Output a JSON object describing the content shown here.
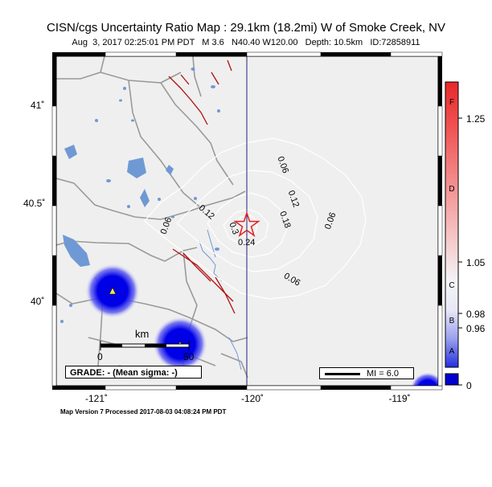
{
  "header": {
    "title": "CISN/cgs Uncertainty Ratio Map : 29.1km (18.2mi) W of Smoke Creek, NV",
    "subtitle": "Aug  3, 2017 02:25:01 PM PDT   M 3.6   N40.40 W120.00   Depth: 10.5km   ID:72858911"
  },
  "axes": {
    "y_labels": [
      "41˚",
      "40.5˚",
      "40˚"
    ],
    "x_labels": [
      "-121˚",
      "-120˚",
      "-119˚"
    ]
  },
  "contours": {
    "labels": [
      "0.06",
      "0.12",
      "0.18",
      "0.06",
      "0.06",
      "0.12",
      "0.3",
      "0.24",
      "0.06",
      "0.06"
    ]
  },
  "scale_bar": {
    "unit": "km",
    "left": "0",
    "right": "50"
  },
  "grade": {
    "text": "GRADE: - (Mean sigma: -)"
  },
  "mi_legend": {
    "text": "MI = 6.0"
  },
  "colorbar": {
    "ticks": [
      "1.25",
      "1.05",
      "0.98",
      "0.96",
      "0"
    ],
    "letters": [
      "F",
      "D",
      "C",
      "B",
      "A"
    ],
    "colors": {
      "top": "#e8282a",
      "mid": "#f4f4f8",
      "bottom": "#2430e0",
      "base": "#0000d0"
    }
  },
  "footer": {
    "text": "Map Version 7 Processed 2017-08-03 04:08:24 PM PDT"
  },
  "colors": {
    "background": "#efefef",
    "water": "#6f99d4",
    "roads": "#9a9a9a",
    "faults": "#b01010",
    "contours": "#ffffff",
    "epicenter": "#e22222",
    "station_blob": "#0000e0"
  }
}
